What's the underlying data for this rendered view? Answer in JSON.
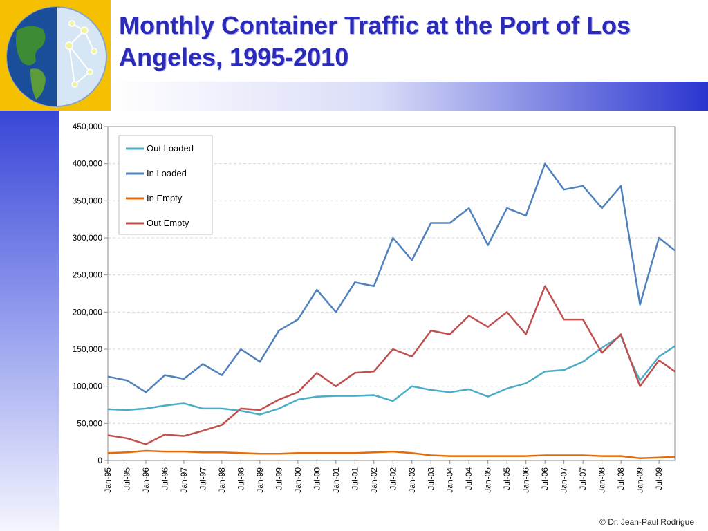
{
  "slide": {
    "title": "Monthly Container Traffic at the Port of Los Angeles, 1995-2010",
    "copyright": "© Dr. Jean-Paul Rodrigue"
  },
  "chart_data": {
    "type": "line",
    "title": "",
    "xlabel": "",
    "ylabel": "",
    "ylim": [
      0,
      450000
    ],
    "yticks": [
      "0",
      "50,000",
      "100,000",
      "150,000",
      "200,000",
      "250,000",
      "300,000",
      "350,000",
      "400,000",
      "450,000"
    ],
    "grid": "horizontal dashed",
    "legend_position": "top-left",
    "x_start": "Jan-95",
    "x_end": "Dec-09",
    "x_tick_labels": [
      "Jan-95",
      "Jul-95",
      "Jan-96",
      "Jul-96",
      "Jan-97",
      "Jul-97",
      "Jan-98",
      "Jul-98",
      "Jan-99",
      "Jul-99",
      "Jan-00",
      "Jul-00",
      "Jan-01",
      "Jul-01",
      "Jan-02",
      "Jul-02",
      "Jan-03",
      "Jul-03",
      "Jan-04",
      "Jul-04",
      "Jan-05",
      "Jul-05",
      "Jan-06",
      "Jul-06",
      "Jan-07",
      "Jul-07",
      "Jan-08",
      "Jul-08",
      "Jan-09",
      "Jul-09"
    ],
    "series": [
      {
        "name": "Out Loaded",
        "color": "#4bacc6",
        "points": [
          [
            "Jan-95",
            69000
          ],
          [
            "Jul-95",
            68000
          ],
          [
            "Jan-96",
            70000
          ],
          [
            "Jul-96",
            74000
          ],
          [
            "Jan-97",
            77000
          ],
          [
            "Jul-97",
            70000
          ],
          [
            "Jan-98",
            70000
          ],
          [
            "Jul-98",
            67000
          ],
          [
            "Jan-99",
            62000
          ],
          [
            "Jul-99",
            70000
          ],
          [
            "Jan-00",
            82000
          ],
          [
            "Jul-00",
            86000
          ],
          [
            "Jan-01",
            87000
          ],
          [
            "Jul-01",
            87000
          ],
          [
            "Jan-02",
            88000
          ],
          [
            "Jul-02",
            80000
          ],
          [
            "Jan-03",
            100000
          ],
          [
            "Jul-03",
            95000
          ],
          [
            "Jan-04",
            92000
          ],
          [
            "Jul-04",
            96000
          ],
          [
            "Jan-05",
            86000
          ],
          [
            "Jul-05",
            97000
          ],
          [
            "Jan-06",
            104000
          ],
          [
            "Jul-06",
            120000
          ],
          [
            "Jan-07",
            122000
          ],
          [
            "Jul-07",
            133000
          ],
          [
            "Jan-08",
            152000
          ],
          [
            "Jul-08",
            168000
          ],
          [
            "Oct-08",
            135000
          ],
          [
            "Jan-09",
            108000
          ],
          [
            "Jul-09",
            140000
          ],
          [
            "Dec-09",
            154000
          ]
        ]
      },
      {
        "name": "In Loaded",
        "color": "#4f81bd",
        "points": [
          [
            "Jan-95",
            113000
          ],
          [
            "Jul-95",
            108000
          ],
          [
            "Jan-96",
            92000
          ],
          [
            "Jul-96",
            115000
          ],
          [
            "Jan-97",
            110000
          ],
          [
            "Jul-97",
            130000
          ],
          [
            "Jan-98",
            115000
          ],
          [
            "Jul-98",
            150000
          ],
          [
            "Jan-99",
            133000
          ],
          [
            "Jul-99",
            175000
          ],
          [
            "Jan-00",
            190000
          ],
          [
            "Jul-00",
            230000
          ],
          [
            "Jan-01",
            200000
          ],
          [
            "Jul-01",
            240000
          ],
          [
            "Jan-02",
            235000
          ],
          [
            "Jul-02",
            300000
          ],
          [
            "Jan-03",
            270000
          ],
          [
            "Jul-03",
            320000
          ],
          [
            "Jan-04",
            320000
          ],
          [
            "Jul-04",
            340000
          ],
          [
            "Jan-05",
            290000
          ],
          [
            "Jul-05",
            340000
          ],
          [
            "Jan-06",
            330000
          ],
          [
            "Jul-06",
            400000
          ],
          [
            "Jan-07",
            365000
          ],
          [
            "Jul-07",
            370000
          ],
          [
            "Jan-08",
            340000
          ],
          [
            "Jul-08",
            370000
          ],
          [
            "Jan-09",
            210000
          ],
          [
            "Jul-09",
            300000
          ],
          [
            "Dec-09",
            283000
          ]
        ]
      },
      {
        "name": "In Empty",
        "color": "#e36c09",
        "points": [
          [
            "Jan-95",
            10000
          ],
          [
            "Jul-95",
            11000
          ],
          [
            "Jan-96",
            13000
          ],
          [
            "Jul-96",
            12000
          ],
          [
            "Jan-97",
            12000
          ],
          [
            "Jul-97",
            11000
          ],
          [
            "Jan-98",
            11000
          ],
          [
            "Jul-98",
            10000
          ],
          [
            "Jan-99",
            9000
          ],
          [
            "Jul-99",
            9000
          ],
          [
            "Jan-00",
            10000
          ],
          [
            "Jul-00",
            10000
          ],
          [
            "Jan-01",
            10000
          ],
          [
            "Jul-01",
            10000
          ],
          [
            "Jan-02",
            11000
          ],
          [
            "Jul-02",
            12000
          ],
          [
            "Jan-03",
            10000
          ],
          [
            "Jul-03",
            7000
          ],
          [
            "Jan-04",
            6000
          ],
          [
            "Jul-04",
            6000
          ],
          [
            "Jan-05",
            6000
          ],
          [
            "Jul-05",
            6000
          ],
          [
            "Jan-06",
            6000
          ],
          [
            "Jul-06",
            7000
          ],
          [
            "Jan-07",
            7000
          ],
          [
            "Jul-07",
            7000
          ],
          [
            "Jan-08",
            6000
          ],
          [
            "Jul-08",
            6000
          ],
          [
            "Jan-09",
            3000
          ],
          [
            "Jul-09",
            4000
          ],
          [
            "Dec-09",
            5000
          ]
        ]
      },
      {
        "name": "Out Empty",
        "color": "#c0504d",
        "points": [
          [
            "Jan-95",
            34000
          ],
          [
            "Jul-95",
            30000
          ],
          [
            "Jan-96",
            22000
          ],
          [
            "Jul-96",
            35000
          ],
          [
            "Jan-97",
            33000
          ],
          [
            "Jul-97",
            40000
          ],
          [
            "Jan-98",
            48000
          ],
          [
            "Jul-98",
            70000
          ],
          [
            "Jan-99",
            68000
          ],
          [
            "Jul-99",
            82000
          ],
          [
            "Jan-00",
            92000
          ],
          [
            "Jul-00",
            118000
          ],
          [
            "Jan-01",
            100000
          ],
          [
            "Jul-01",
            118000
          ],
          [
            "Jan-02",
            120000
          ],
          [
            "Jul-02",
            150000
          ],
          [
            "Jan-03",
            140000
          ],
          [
            "Jul-03",
            175000
          ],
          [
            "Jan-04",
            170000
          ],
          [
            "Jul-04",
            195000
          ],
          [
            "Jan-05",
            180000
          ],
          [
            "Jul-05",
            200000
          ],
          [
            "Jan-06",
            170000
          ],
          [
            "Jul-06",
            235000
          ],
          [
            "Jan-07",
            190000
          ],
          [
            "Jul-07",
            190000
          ],
          [
            "Jan-08",
            145000
          ],
          [
            "Jul-08",
            170000
          ],
          [
            "Jan-09",
            100000
          ],
          [
            "Jul-09",
            135000
          ],
          [
            "Dec-09",
            120000
          ]
        ]
      }
    ]
  }
}
